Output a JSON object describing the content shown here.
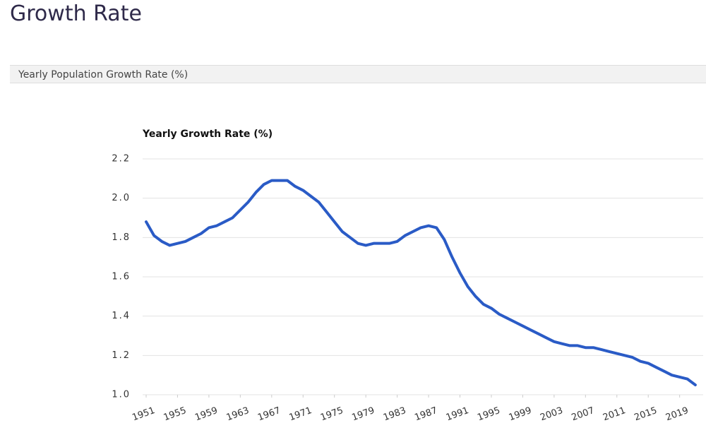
{
  "header": {
    "title": "Growth Rate",
    "section": "Yearly Population Growth Rate (%)"
  },
  "chart_data": {
    "type": "line",
    "title": "Yearly Growth Rate (%)",
    "x": [
      1951,
      1952,
      1953,
      1954,
      1955,
      1956,
      1957,
      1958,
      1959,
      1960,
      1961,
      1962,
      1963,
      1964,
      1965,
      1966,
      1967,
      1968,
      1969,
      1970,
      1971,
      1972,
      1973,
      1974,
      1975,
      1976,
      1977,
      1978,
      1979,
      1980,
      1981,
      1982,
      1983,
      1984,
      1985,
      1986,
      1987,
      1988,
      1989,
      1990,
      1991,
      1992,
      1993,
      1994,
      1995,
      1996,
      1997,
      1998,
      1999,
      2000,
      2001,
      2002,
      2003,
      2004,
      2005,
      2006,
      2007,
      2008,
      2009,
      2010,
      2011,
      2012,
      2013,
      2014,
      2015,
      2016,
      2017,
      2018,
      2019,
      2020,
      2021
    ],
    "values": [
      1.88,
      1.81,
      1.78,
      1.76,
      1.77,
      1.78,
      1.8,
      1.82,
      1.85,
      1.86,
      1.88,
      1.9,
      1.94,
      1.98,
      2.03,
      2.07,
      2.09,
      2.09,
      2.09,
      2.06,
      2.04,
      2.01,
      1.98,
      1.93,
      1.88,
      1.83,
      1.8,
      1.77,
      1.76,
      1.77,
      1.77,
      1.77,
      1.78,
      1.81,
      1.83,
      1.85,
      1.86,
      1.85,
      1.79,
      1.7,
      1.62,
      1.55,
      1.5,
      1.46,
      1.44,
      1.41,
      1.39,
      1.37,
      1.35,
      1.33,
      1.31,
      1.29,
      1.27,
      1.26,
      1.25,
      1.25,
      1.24,
      1.24,
      1.23,
      1.22,
      1.21,
      1.2,
      1.19,
      1.17,
      1.16,
      1.14,
      1.12,
      1.1,
      1.09,
      1.08,
      1.05
    ],
    "color": "#2a5bc6",
    "xlim": [
      1951,
      2022
    ],
    "xticks": [
      1951,
      1955,
      1959,
      1963,
      1967,
      1971,
      1975,
      1979,
      1983,
      1987,
      1991,
      1995,
      1999,
      2003,
      2007,
      2011,
      2015,
      2019
    ],
    "ylim": [
      1.0,
      2.2
    ],
    "yticks": [
      {
        "value": 1.0,
        "label": "1.0"
      },
      1.2,
      1.4,
      1.6,
      1.8,
      {
        "value": 2.0,
        "label": "2.0"
      },
      2.2
    ],
    "grid": true
  }
}
